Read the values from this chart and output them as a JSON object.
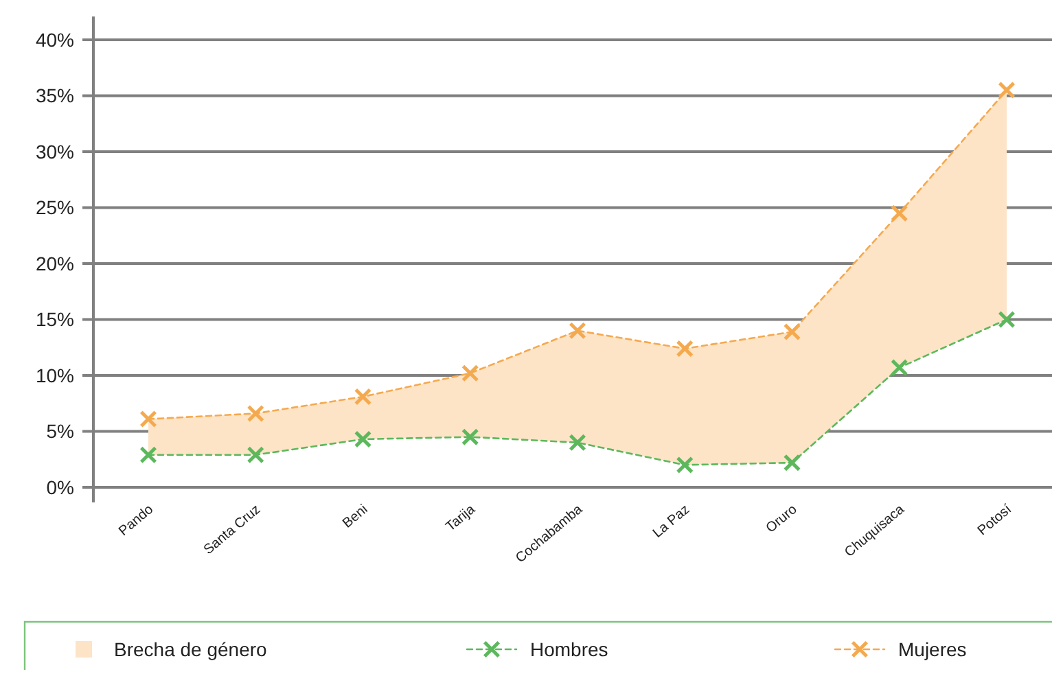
{
  "chart_data": {
    "type": "line",
    "categories": [
      "Pando",
      "Santa Cruz",
      "Beni",
      "Tarija",
      "Cochabamba",
      "La Paz",
      "Oruro",
      "Chuquisaca",
      "Potosí"
    ],
    "series": [
      {
        "name": "Brecha de género",
        "type": "area",
        "color": "#fde4c6",
        "values": [
          null,
          null,
          null,
          null,
          null,
          null,
          null,
          null,
          null
        ],
        "lower": [
          2.9,
          2.9,
          4.3,
          4.5,
          4.0,
          2.0,
          2.2,
          10.7,
          15.0
        ],
        "upper": [
          6.1,
          6.6,
          8.1,
          10.2,
          14.0,
          12.4,
          13.9,
          24.5,
          35.5
        ]
      },
      {
        "name": "Hombres",
        "color": "#5cb85c",
        "marker": "cross",
        "line_style": "dashed",
        "values": [
          2.9,
          2.9,
          4.3,
          4.5,
          4.0,
          2.0,
          2.2,
          10.7,
          15.0
        ]
      },
      {
        "name": "Mujeres",
        "color": "#f5a94f",
        "marker": "cross",
        "line_style": "dashed",
        "values": [
          6.1,
          6.6,
          8.1,
          10.2,
          14.0,
          12.4,
          13.9,
          24.5,
          35.5
        ]
      }
    ],
    "ylim": [
      0,
      40
    ],
    "yticks": [
      {
        "value": 0,
        "label": "0%"
      },
      {
        "value": 5,
        "label": "5%"
      },
      {
        "value": 10,
        "label": "10%"
      },
      {
        "value": 15,
        "label": "15%"
      },
      {
        "value": 20,
        "label": "20%"
      },
      {
        "value": 25,
        "label": "25%"
      },
      {
        "value": 30,
        "label": "30%"
      },
      {
        "value": 35,
        "label": "35%"
      },
      {
        "value": 40,
        "label": "40%"
      }
    ],
    "grid": "y",
    "legend": "bottom"
  }
}
